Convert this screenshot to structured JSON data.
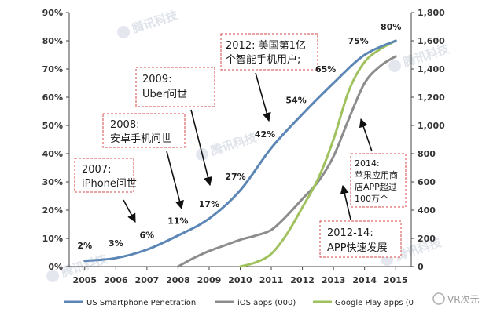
{
  "chart_data": {
    "type": "line",
    "x": [
      2005,
      2006,
      2007,
      2008,
      2009,
      2010,
      2011,
      2012,
      2013,
      2014,
      2015
    ],
    "y_left": {
      "ticks": [
        "0%",
        "10%",
        "20%",
        "30%",
        "40%",
        "50%",
        "60%",
        "70%",
        "80%",
        "90%"
      ],
      "range": [
        0,
        90
      ]
    },
    "y_right": {
      "ticks": [
        "0",
        "200",
        "400",
        "600",
        "800",
        "1,000",
        "1,200",
        "1,400",
        "1,600",
        "1,800"
      ],
      "range": [
        0,
        1800
      ]
    },
    "series": [
      {
        "name": "US Smartphone Penetration",
        "axis": "left",
        "color": "#5b86b5",
        "x": [
          2005,
          2006,
          2007,
          2008,
          2009,
          2010,
          2011,
          2012,
          2013,
          2014,
          2015
        ],
        "values": [
          2,
          3,
          6,
          11,
          17,
          27,
          42,
          54,
          65,
          75,
          80
        ],
        "labels": [
          "2%",
          "3%",
          "6%",
          "11%",
          "17%",
          "27%",
          "42%",
          "54%",
          "65%",
          "75%",
          "80%"
        ]
      },
      {
        "name": "iOS apps (000)",
        "axis": "right",
        "color": "#8c8c8c",
        "x": [
          2008,
          2008.5,
          2009,
          2009.5,
          2010,
          2010.5,
          2011,
          2011.5,
          2012,
          2012.5,
          2013,
          2013.5,
          2014,
          2014.5,
          2015
        ],
        "values": [
          0,
          60,
          110,
          150,
          190,
          220,
          260,
          360,
          480,
          600,
          780,
          1050,
          1300,
          1420,
          1490
        ]
      },
      {
        "name": "Google Play apps (000)",
        "axis": "right",
        "color": "#9fc25f",
        "x": [
          2010,
          2010.5,
          2011,
          2011.5,
          2012,
          2012.5,
          2013,
          2013.5,
          2014,
          2014.5,
          2015
        ],
        "values": [
          0,
          30,
          90,
          230,
          420,
          620,
          900,
          1250,
          1450,
          1540,
          1600
        ]
      }
    ],
    "legend": {
      "position": "bottom",
      "labels": [
        "US Smartphone Penetration",
        "iOS apps (000)",
        "Google Play apps (0"
      ]
    },
    "annotations": [
      {
        "id": "2007",
        "lines": [
          "2007:",
          "iPhone问世"
        ]
      },
      {
        "id": "2008",
        "lines": [
          "2008:",
          "安卓手机问世"
        ]
      },
      {
        "id": "2009",
        "lines": [
          "2009:",
          "Uber问世"
        ]
      },
      {
        "id": "2012",
        "lines": [
          "2012: 美国第1亿",
          "个智能手机用户;"
        ]
      },
      {
        "id": "2012-14",
        "lines": [
          "2012-14:",
          "APP快速发展"
        ]
      },
      {
        "id": "2014",
        "lines": [
          "2014:",
          "苹果应用商",
          "店APP超过",
          "100万个"
        ]
      }
    ],
    "grid": false
  },
  "watermark": "腾讯科技",
  "corner_logo": "VR次元"
}
